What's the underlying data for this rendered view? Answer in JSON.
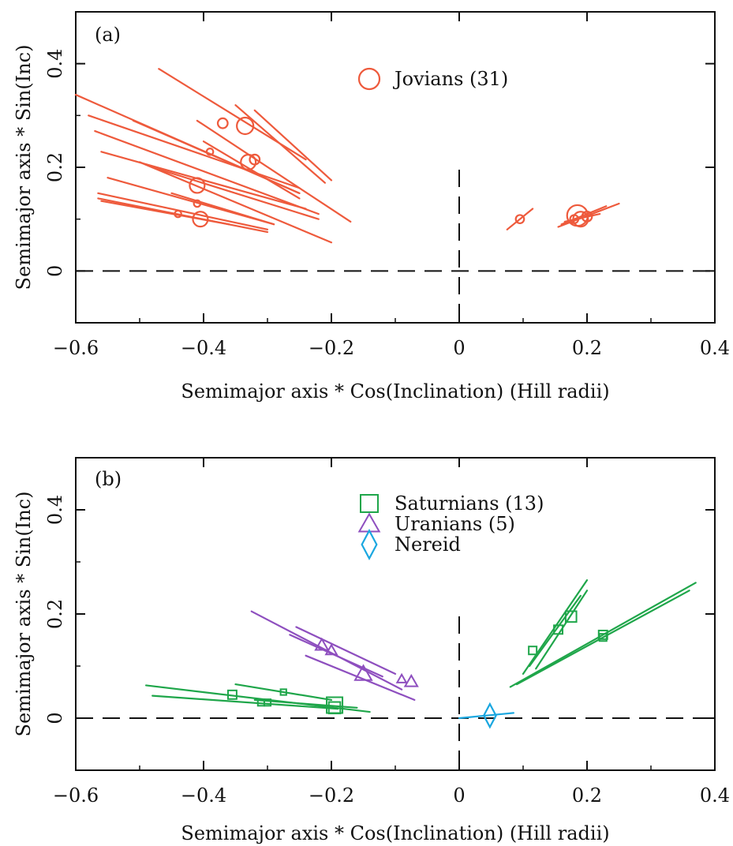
{
  "chart_data": [
    {
      "type": "scatter",
      "panel_label": "(a)",
      "xlabel": "Semimajor axis * Cos(Inclination) (Hill radii)",
      "ylabel": "Semimajor axis * Sin(Inc)",
      "xlim": [
        -0.6,
        0.4
      ],
      "ylim": [
        -0.1,
        0.5
      ],
      "xticks": [
        -0.6,
        -0.4,
        -0.2,
        0,
        0.2,
        0.4
      ],
      "xtick_labels": [
        "−0.6",
        "−0.4",
        "−0.2",
        "0",
        "0.2",
        "0.4"
      ],
      "yticks": [
        0,
        0.2,
        0.4
      ],
      "ytick_labels": [
        "0",
        "0.2",
        "0.4"
      ],
      "reference_lines": "dashed at x=0 and y=0",
      "legend_position": "top-center",
      "series": [
        {
          "name": "Jovians (31)",
          "marker": "circle",
          "color": "#EE5A3C",
          "points": [
            {
              "x": -0.335,
              "y": 0.28,
              "size": 1.0
            },
            {
              "x": -0.37,
              "y": 0.285,
              "size": 0.6
            },
            {
              "x": -0.33,
              "y": 0.21,
              "size": 0.9
            },
            {
              "x": -0.32,
              "y": 0.215,
              "size": 0.6
            },
            {
              "x": -0.39,
              "y": 0.23,
              "size": 0.4
            },
            {
              "x": -0.41,
              "y": 0.165,
              "size": 0.9
            },
            {
              "x": -0.405,
              "y": 0.1,
              "size": 0.9
            },
            {
              "x": -0.41,
              "y": 0.13,
              "size": 0.4
            },
            {
              "x": -0.44,
              "y": 0.11,
              "size": 0.4
            },
            {
              "x": 0.095,
              "y": 0.1,
              "size": 0.5
            },
            {
              "x": 0.185,
              "y": 0.107,
              "size": 1.25
            },
            {
              "x": 0.19,
              "y": 0.1,
              "size": 0.9
            },
            {
              "x": 0.2,
              "y": 0.105,
              "size": 0.6
            },
            {
              "x": 0.18,
              "y": 0.1,
              "size": 0.5
            }
          ],
          "segments": [
            [
              -0.6,
              0.34,
              -0.25,
              0.15
            ],
            [
              -0.58,
              0.3,
              -0.25,
              0.16
            ],
            [
              -0.57,
              0.27,
              -0.22,
              0.11
            ],
            [
              -0.56,
              0.23,
              -0.24,
              0.12
            ],
            [
              -0.55,
              0.18,
              -0.29,
              0.09
            ],
            [
              -0.565,
              0.15,
              -0.3,
              0.08
            ],
            [
              -0.565,
              0.14,
              -0.3,
              0.075
            ],
            [
              -0.56,
              0.135,
              -0.36,
              0.09
            ],
            [
              -0.5,
              0.21,
              -0.2,
              0.055
            ],
            [
              -0.47,
              0.39,
              -0.24,
              0.215
            ],
            [
              -0.41,
              0.29,
              -0.17,
              0.095
            ],
            [
              -0.51,
              0.29,
              -0.25,
              0.15
            ],
            [
              -0.4,
              0.25,
              -0.25,
              0.14
            ],
            [
              -0.32,
              0.31,
              -0.2,
              0.175
            ],
            [
              -0.35,
              0.32,
              -0.21,
              0.17
            ],
            [
              -0.45,
              0.15,
              -0.29,
              0.09
            ],
            [
              -0.48,
              0.2,
              -0.22,
              0.1
            ],
            [
              0.075,
              0.08,
              0.115,
              0.12
            ],
            [
              0.155,
              0.085,
              0.25,
              0.13
            ],
            [
              0.16,
              0.09,
              0.23,
              0.125
            ],
            [
              0.165,
              0.095,
              0.22,
              0.11
            ]
          ]
        }
      ]
    },
    {
      "type": "scatter",
      "panel_label": "(b)",
      "xlabel": "Semimajor axis * Cos(Inclination) (Hill radii)",
      "ylabel": "Semimajor axis * Sin(Inc)",
      "xlim": [
        -0.6,
        0.4
      ],
      "ylim": [
        -0.1,
        0.5
      ],
      "xticks": [
        -0.6,
        -0.4,
        -0.2,
        0,
        0.2,
        0.4
      ],
      "xtick_labels": [
        "−0.6",
        "−0.4",
        "−0.2",
        "0",
        "0.2",
        "0.4"
      ],
      "yticks": [
        0,
        0.2,
        0.4
      ],
      "ytick_labels": [
        "0",
        "0.2",
        "0.4"
      ],
      "reference_lines": "dashed at x=0 and y=0",
      "legend_position": "top-center",
      "series": [
        {
          "name": "Saturnians (13)",
          "marker": "square",
          "color": "#1FA64A",
          "points": [
            {
              "x": -0.355,
              "y": 0.045,
              "size": 0.6
            },
            {
              "x": -0.31,
              "y": 0.03,
              "size": 0.45
            },
            {
              "x": -0.3,
              "y": 0.03,
              "size": 0.45
            },
            {
              "x": -0.275,
              "y": 0.05,
              "size": 0.4
            },
            {
              "x": -0.195,
              "y": 0.025,
              "size": 1.1
            },
            {
              "x": -0.195,
              "y": 0.02,
              "size": 0.8
            },
            {
              "x": 0.115,
              "y": 0.13,
              "size": 0.55
            },
            {
              "x": 0.155,
              "y": 0.17,
              "size": 0.6
            },
            {
              "x": 0.175,
              "y": 0.195,
              "size": 0.75
            },
            {
              "x": 0.225,
              "y": 0.16,
              "size": 0.6
            },
            {
              "x": 0.225,
              "y": 0.155,
              "size": 0.5
            }
          ],
          "segments": [
            [
              -0.49,
              0.063,
              -0.14,
              0.012
            ],
            [
              -0.48,
              0.043,
              -0.19,
              0.018
            ],
            [
              -0.35,
              0.065,
              -0.2,
              0.035
            ],
            [
              -0.32,
              0.035,
              -0.16,
              0.02
            ],
            [
              0.1,
              0.085,
              0.2,
              0.265
            ],
            [
              0.11,
              0.1,
              0.19,
              0.235
            ],
            [
              0.12,
              0.095,
              0.2,
              0.245
            ],
            [
              0.08,
              0.06,
              0.37,
              0.26
            ],
            [
              0.09,
              0.065,
              0.36,
              0.245
            ]
          ]
        },
        {
          "name": "Uranians (5)",
          "marker": "triangle",
          "color": "#8E4FBF",
          "points": [
            {
              "x": -0.215,
              "y": 0.14,
              "size": 0.75
            },
            {
              "x": -0.2,
              "y": 0.13,
              "size": 0.65
            },
            {
              "x": -0.15,
              "y": 0.085,
              "size": 1.0
            },
            {
              "x": -0.09,
              "y": 0.075,
              "size": 0.55
            },
            {
              "x": -0.075,
              "y": 0.07,
              "size": 0.75
            }
          ],
          "segments": [
            [
              -0.325,
              0.205,
              -0.09,
              0.055
            ],
            [
              -0.255,
              0.175,
              -0.1,
              0.085
            ],
            [
              -0.265,
              0.16,
              -0.12,
              0.08
            ],
            [
              -0.24,
              0.12,
              -0.07,
              0.035
            ]
          ]
        },
        {
          "name": "Nereid",
          "marker": "diamond",
          "color": "#1AA7E0",
          "points": [
            {
              "x": 0.048,
              "y": 0.005,
              "size": 1.0
            }
          ],
          "segments": [
            [
              0.0,
              0.0,
              0.085,
              0.01
            ]
          ]
        }
      ]
    }
  ]
}
